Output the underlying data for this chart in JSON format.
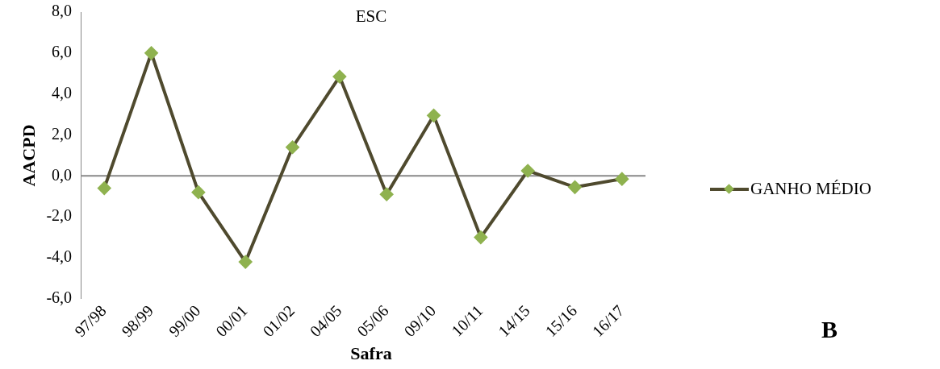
{
  "chart_data": {
    "type": "line",
    "title": "ESC",
    "xlabel": "Safra",
    "ylabel": "AACPD",
    "categories": [
      "97/98",
      "98/99",
      "99/00",
      "00/01",
      "01/02",
      "04/05",
      "05/06",
      "09/10",
      "10/11",
      "14/15",
      "15/16",
      "16/17"
    ],
    "series": [
      {
        "name": "GANHO MÉDIO",
        "color": "#4f4a2e",
        "values": [
          -0.6,
          6.0,
          -0.8,
          -4.2,
          1.4,
          4.85,
          -0.9,
          2.95,
          -3.0,
          0.25,
          -0.55,
          -0.15
        ]
      }
    ],
    "ylim": [
      -6,
      8
    ],
    "yticks": [
      {
        "value": -6,
        "label": "-6,0"
      },
      {
        "value": -4,
        "label": "-4,0"
      },
      {
        "value": -2,
        "label": "-2,0"
      },
      {
        "value": 0,
        "label": "0,0"
      },
      {
        "value": 2,
        "label": "2,0"
      },
      {
        "value": 4,
        "label": "4,0"
      },
      {
        "value": 6,
        "label": "6,0"
      },
      {
        "value": 8,
        "label": "8,0"
      }
    ],
    "ref_lines": [
      {
        "axis": "y",
        "value": 0,
        "color": "#888888"
      }
    ],
    "marker": "diamond",
    "legend": "right",
    "grid": false,
    "annotations": [
      "B"
    ]
  }
}
